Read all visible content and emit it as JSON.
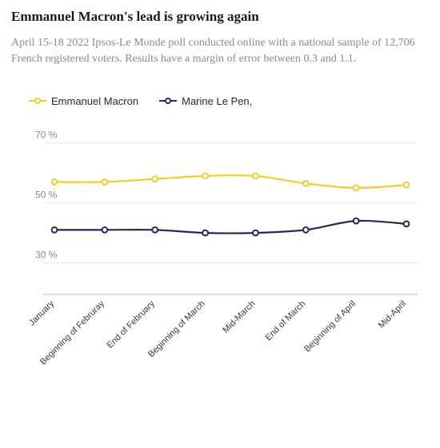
{
  "title": "Emmanuel Macron's lead is growing again",
  "subtitle": "April 15-18 2022 Ipsos-Le Monde poll conducted online with a national sample of 12,706 French registered voters. Results have a margin of error between 0.3 and 1.1.",
  "chart": {
    "type": "line",
    "background_color": "#ffffff",
    "grid_color": "#e6e6e6",
    "baseline_color": "#bdbdbd",
    "title_fontsize": 17,
    "subtitle_fontsize": 14,
    "subtitle_color": "#8a8a8a",
    "label_fontsize": 12,
    "line_width": 2.2,
    "marker_radius": 3.4,
    "ylim": [
      20,
      75
    ],
    "yticks": [
      30,
      50,
      70
    ],
    "ytick_suffix": " %",
    "categories": [
      "January",
      "Beginning of Februray",
      "End of February",
      "Beginning of March",
      "Mid-March",
      "End of March",
      "Beginning of April",
      "Mid-April"
    ],
    "series": [
      {
        "name": "Emmanuel Macron",
        "color": "#f2cb30",
        "values": [
          57,
          57,
          58,
          59,
          59,
          56.5,
          55,
          56
        ]
      },
      {
        "name": "Marine Le Pen,",
        "color": "#242a59",
        "values": [
          41,
          41,
          41,
          40,
          40,
          41,
          44,
          43
        ]
      }
    ],
    "legend_position": "top-left"
  }
}
